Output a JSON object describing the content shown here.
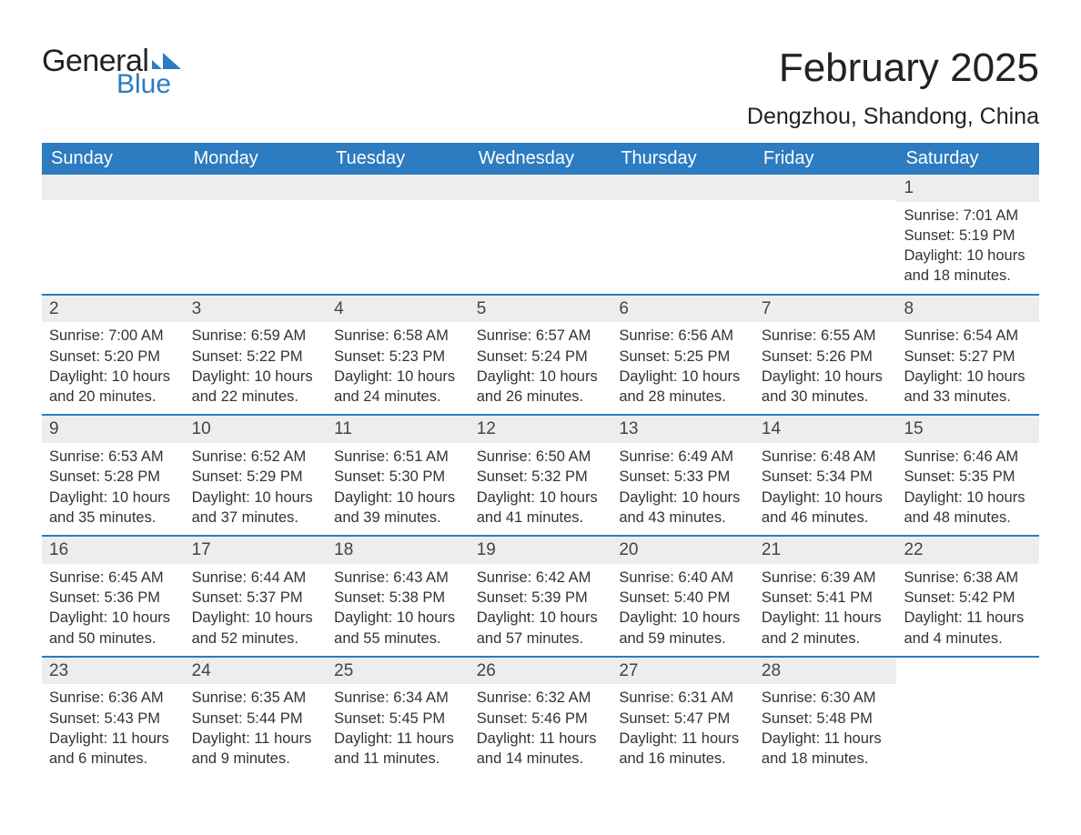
{
  "logo": {
    "text_general": "General",
    "text_blue": "Blue",
    "flag_color": "#2d7bc0"
  },
  "header": {
    "title": "February 2025",
    "location": "Dengzhou, Shandong, China"
  },
  "colors": {
    "header_bar": "#2d7bc0",
    "daynum_bg": "#ededed",
    "text": "#333333",
    "background": "#ffffff"
  },
  "days_of_week": [
    "Sunday",
    "Monday",
    "Tuesday",
    "Wednesday",
    "Thursday",
    "Friday",
    "Saturday"
  ],
  "weeks": [
    [
      null,
      null,
      null,
      null,
      null,
      null,
      {
        "n": "1",
        "sunrise": "7:01 AM",
        "sunset": "5:19 PM",
        "daylight": "10 hours and 18 minutes."
      }
    ],
    [
      {
        "n": "2",
        "sunrise": "7:00 AM",
        "sunset": "5:20 PM",
        "daylight": "10 hours and 20 minutes."
      },
      {
        "n": "3",
        "sunrise": "6:59 AM",
        "sunset": "5:22 PM",
        "daylight": "10 hours and 22 minutes."
      },
      {
        "n": "4",
        "sunrise": "6:58 AM",
        "sunset": "5:23 PM",
        "daylight": "10 hours and 24 minutes."
      },
      {
        "n": "5",
        "sunrise": "6:57 AM",
        "sunset": "5:24 PM",
        "daylight": "10 hours and 26 minutes."
      },
      {
        "n": "6",
        "sunrise": "6:56 AM",
        "sunset": "5:25 PM",
        "daylight": "10 hours and 28 minutes."
      },
      {
        "n": "7",
        "sunrise": "6:55 AM",
        "sunset": "5:26 PM",
        "daylight": "10 hours and 30 minutes."
      },
      {
        "n": "8",
        "sunrise": "6:54 AM",
        "sunset": "5:27 PM",
        "daylight": "10 hours and 33 minutes."
      }
    ],
    [
      {
        "n": "9",
        "sunrise": "6:53 AM",
        "sunset": "5:28 PM",
        "daylight": "10 hours and 35 minutes."
      },
      {
        "n": "10",
        "sunrise": "6:52 AM",
        "sunset": "5:29 PM",
        "daylight": "10 hours and 37 minutes."
      },
      {
        "n": "11",
        "sunrise": "6:51 AM",
        "sunset": "5:30 PM",
        "daylight": "10 hours and 39 minutes."
      },
      {
        "n": "12",
        "sunrise": "6:50 AM",
        "sunset": "5:32 PM",
        "daylight": "10 hours and 41 minutes."
      },
      {
        "n": "13",
        "sunrise": "6:49 AM",
        "sunset": "5:33 PM",
        "daylight": "10 hours and 43 minutes."
      },
      {
        "n": "14",
        "sunrise": "6:48 AM",
        "sunset": "5:34 PM",
        "daylight": "10 hours and 46 minutes."
      },
      {
        "n": "15",
        "sunrise": "6:46 AM",
        "sunset": "5:35 PM",
        "daylight": "10 hours and 48 minutes."
      }
    ],
    [
      {
        "n": "16",
        "sunrise": "6:45 AM",
        "sunset": "5:36 PM",
        "daylight": "10 hours and 50 minutes."
      },
      {
        "n": "17",
        "sunrise": "6:44 AM",
        "sunset": "5:37 PM",
        "daylight": "10 hours and 52 minutes."
      },
      {
        "n": "18",
        "sunrise": "6:43 AM",
        "sunset": "5:38 PM",
        "daylight": "10 hours and 55 minutes."
      },
      {
        "n": "19",
        "sunrise": "6:42 AM",
        "sunset": "5:39 PM",
        "daylight": "10 hours and 57 minutes."
      },
      {
        "n": "20",
        "sunrise": "6:40 AM",
        "sunset": "5:40 PM",
        "daylight": "10 hours and 59 minutes."
      },
      {
        "n": "21",
        "sunrise": "6:39 AM",
        "sunset": "5:41 PM",
        "daylight": "11 hours and 2 minutes."
      },
      {
        "n": "22",
        "sunrise": "6:38 AM",
        "sunset": "5:42 PM",
        "daylight": "11 hours and 4 minutes."
      }
    ],
    [
      {
        "n": "23",
        "sunrise": "6:36 AM",
        "sunset": "5:43 PM",
        "daylight": "11 hours and 6 minutes."
      },
      {
        "n": "24",
        "sunrise": "6:35 AM",
        "sunset": "5:44 PM",
        "daylight": "11 hours and 9 minutes."
      },
      {
        "n": "25",
        "sunrise": "6:34 AM",
        "sunset": "5:45 PM",
        "daylight": "11 hours and 11 minutes."
      },
      {
        "n": "26",
        "sunrise": "6:32 AM",
        "sunset": "5:46 PM",
        "daylight": "11 hours and 14 minutes."
      },
      {
        "n": "27",
        "sunrise": "6:31 AM",
        "sunset": "5:47 PM",
        "daylight": "11 hours and 16 minutes."
      },
      {
        "n": "28",
        "sunrise": "6:30 AM",
        "sunset": "5:48 PM",
        "daylight": "11 hours and 18 minutes."
      },
      null
    ]
  ],
  "labels": {
    "sunrise_prefix": "Sunrise: ",
    "sunset_prefix": "Sunset: ",
    "daylight_prefix": "Daylight: "
  }
}
